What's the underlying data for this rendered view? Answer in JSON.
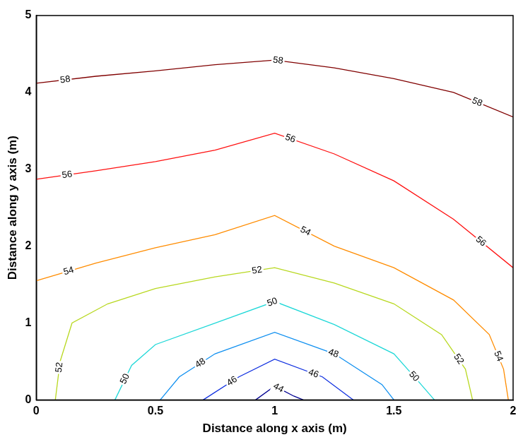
{
  "chart_data": {
    "type": "contour",
    "x_label": "Distance along x axis (m)",
    "y_label": "Distance along y axis (m)",
    "xlim": [
      0,
      2
    ],
    "xticks": [
      0,
      0.5,
      1,
      1.5,
      2
    ],
    "ylim": [
      0,
      5
    ],
    "yticks": [
      0,
      1,
      2,
      3,
      4,
      5
    ],
    "grid": false,
    "series": [
      {
        "level": 58,
        "color": "#800000",
        "x": [
          0,
          0.25,
          0.5,
          0.75,
          1,
          1.25,
          1.5,
          1.75,
          2
        ],
        "y": [
          4.12,
          4.21,
          4.28,
          4.36,
          4.42,
          4.32,
          4.18,
          4.0,
          3.68
        ]
      },
      {
        "level": 56,
        "color": "#ff1010",
        "x": [
          0,
          0.25,
          0.5,
          0.75,
          1,
          1.25,
          1.5,
          1.75,
          2
        ],
        "y": [
          2.87,
          2.98,
          3.1,
          3.25,
          3.47,
          3.2,
          2.85,
          2.35,
          1.72
        ]
      },
      {
        "level": 54,
        "color": "#ff8c00",
        "x": [
          0,
          0.25,
          0.5,
          0.75,
          1,
          1.25,
          1.5,
          1.75,
          1.9,
          1.96,
          1.98
        ],
        "y": [
          1.55,
          1.78,
          1.98,
          2.15,
          2.4,
          2.0,
          1.72,
          1.3,
          0.85,
          0.4,
          0
        ]
      },
      {
        "level": 52,
        "color": "#b8d820",
        "x": [
          0.08,
          0.1,
          0.15,
          0.3,
          0.5,
          0.75,
          1,
          1.25,
          1.5,
          1.7,
          1.8,
          1.83
        ],
        "y": [
          0,
          0.5,
          1.0,
          1.25,
          1.45,
          1.6,
          1.72,
          1.52,
          1.25,
          0.85,
          0.4,
          0
        ]
      },
      {
        "level": 50,
        "color": "#20d8d8",
        "x": [
          0.33,
          0.4,
          0.5,
          0.75,
          1,
          1.25,
          1.5,
          1.6,
          1.67
        ],
        "y": [
          0,
          0.45,
          0.72,
          1.0,
          1.28,
          0.98,
          0.6,
          0.25,
          0
        ]
      },
      {
        "level": 48,
        "color": "#1090f0",
        "x": [
          0.52,
          0.6,
          0.75,
          1,
          1.25,
          1.45,
          1.5
        ],
        "y": [
          0,
          0.3,
          0.6,
          0.88,
          0.6,
          0.2,
          0
        ]
      },
      {
        "level": 46,
        "color": "#1030e0",
        "x": [
          0.7,
          0.85,
          1,
          1.2,
          1.33
        ],
        "y": [
          0,
          0.3,
          0.53,
          0.3,
          0
        ]
      },
      {
        "level": 44,
        "color": "#000090",
        "x": [
          0.92,
          1,
          1.08,
          1.12
        ],
        "y": [
          0,
          0.18,
          0.05,
          0
        ]
      }
    ]
  }
}
